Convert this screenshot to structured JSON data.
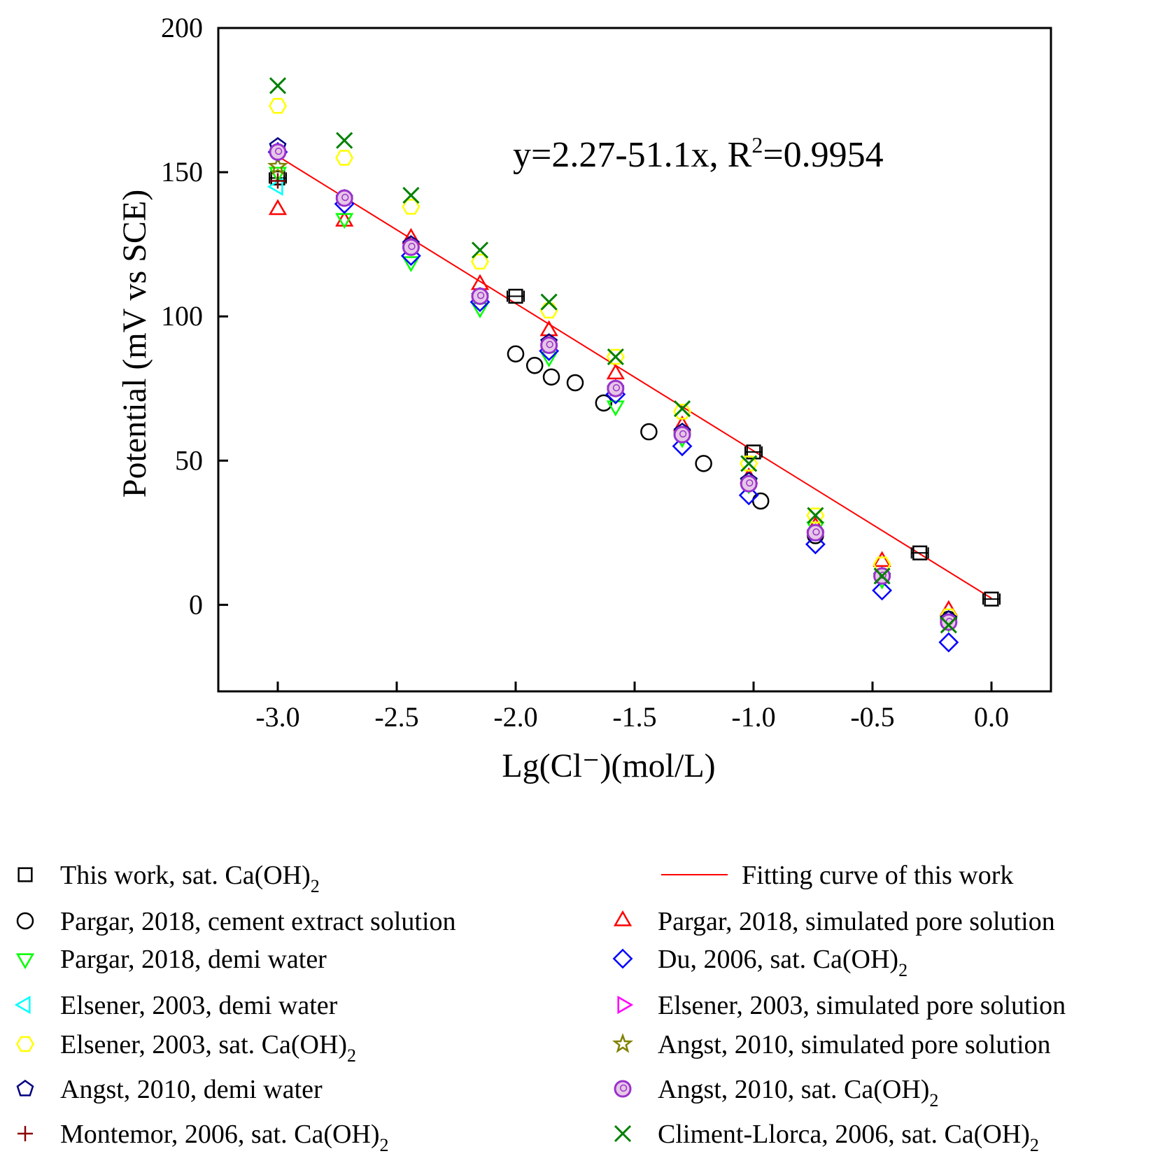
{
  "chart_data": {
    "type": "scatter",
    "xlabel": "Lg(Cl⁻)(mol/L)",
    "ylabel": "Potential (mV vs SCE)",
    "xlim": [
      -3.25,
      0.25
    ],
    "ylim": [
      -30,
      200
    ],
    "xticks": [
      "-3.0",
      "-2.5",
      "-2.0",
      "-1.5",
      "-1.0",
      "-0.5",
      "0.0"
    ],
    "xtick_values": [
      -3.0,
      -2.5,
      -2.0,
      -1.5,
      -1.0,
      -0.5,
      0.0
    ],
    "yticks": [
      "0",
      "50",
      "100",
      "150",
      "200"
    ],
    "ytick_values": [
      0,
      50,
      100,
      150,
      200
    ],
    "grid": false,
    "legend_position": "bottom",
    "annotation": {
      "text": "y=2.27-51.1x, R",
      "sup": "2",
      "text_after": "=0.9954"
    },
    "fit": {
      "name": "Fitting curve of this work",
      "intercept": 2.27,
      "slope": -51.1,
      "x_range": [
        -3.0,
        0.0
      ],
      "color": "#ff0000"
    },
    "series": [
      {
        "name": "This work, sat. Ca(OH)",
        "sub": "2",
        "marker": "square",
        "color": "#000000",
        "x": [
          -3.0,
          -2.0,
          -1.0,
          -0.301,
          0.0
        ],
        "y": [
          148,
          107,
          53,
          18,
          2
        ]
      },
      {
        "name": "Pargar, 2018, cement extract solution",
        "marker": "circle",
        "color": "#000000",
        "x": [
          -2.0,
          -1.92,
          -1.85,
          -1.75,
          -1.63,
          -1.44,
          -1.21,
          -0.97,
          -0.74,
          -0.46,
          -0.18
        ],
        "y": [
          87,
          83,
          79,
          77,
          70,
          60,
          49,
          36,
          24,
          10,
          -5
        ]
      },
      {
        "name": "Pargar, 2018, simulated pore solution",
        "marker": "triangle-up",
        "color": "#ff0000",
        "x": [
          -3.0,
          -2.72,
          -2.44,
          -2.15,
          -1.86,
          -1.58,
          -1.3,
          -1.02,
          -0.74,
          -0.46,
          -0.18
        ],
        "y": [
          137,
          133,
          127,
          111,
          95,
          80,
          62,
          44,
          27,
          15,
          -2
        ]
      },
      {
        "name": "Pargar, 2018, demi water",
        "marker": "triangle-down",
        "color": "#00ff00",
        "x": [
          -3.0,
          -2.72,
          -2.44,
          -2.15,
          -1.86,
          -1.58,
          -1.3,
          -1.02,
          -0.74,
          -0.46,
          -0.18
        ],
        "y": [
          150,
          134,
          119,
          103,
          86,
          69,
          58,
          42,
          27,
          9,
          -6
        ]
      },
      {
        "name": "Du, 2006, sat. Ca(OH)",
        "sub": "2",
        "marker": "diamond",
        "color": "#0000ff",
        "x": [
          -3.0,
          -2.72,
          -2.44,
          -2.15,
          -1.86,
          -1.58,
          -1.3,
          -1.02,
          -0.74,
          -0.46,
          -0.18
        ],
        "y": [
          157,
          139,
          121,
          105,
          88,
          73,
          55,
          38,
          21,
          5,
          -13
        ]
      },
      {
        "name": "Elsener, 2003, demi water",
        "marker": "triangle-left",
        "color": "#00ffff",
        "x": [
          -3.0
        ],
        "y": [
          145
        ]
      },
      {
        "name": "Elsener, 2003, simulated pore solution",
        "marker": "triangle-right",
        "color": "#ff00ff",
        "x": [],
        "y": []
      },
      {
        "name": "Elsener, 2003, sat. Ca(OH)",
        "sub": "2",
        "marker": "hexagon",
        "color": "#ffff00",
        "x": [
          -3.0,
          -2.72,
          -2.44,
          -2.15,
          -1.86,
          -1.58,
          -1.3,
          -1.02,
          -0.74,
          -0.46,
          -0.18
        ],
        "y": [
          173,
          155,
          138,
          119,
          102,
          86,
          67,
          49,
          31,
          14,
          -4
        ]
      },
      {
        "name": "Angst, 2010, simulated pore solution",
        "marker": "star",
        "color": "#808000",
        "x": [
          -3.0
        ],
        "y": [
          152
        ]
      },
      {
        "name": "Angst, 2010, demi water",
        "marker": "pentagon",
        "color": "#000080",
        "x": [
          -3.0,
          -2.72,
          -2.44,
          -2.15,
          -1.86,
          -1.58,
          -1.3,
          -1.02,
          -0.74,
          -0.46,
          -0.18
        ],
        "y": [
          159,
          141,
          125,
          107,
          91,
          75,
          60,
          43,
          25,
          10,
          -5
        ]
      },
      {
        "name": "Angst, 2010, sat. Ca(OH)",
        "sub": "2",
        "marker": "ring",
        "color": "#9932cc",
        "x": [
          -3.0,
          -2.72,
          -2.44,
          -2.15,
          -1.86,
          -1.58,
          -1.3,
          -1.02,
          -0.74,
          -0.46,
          -0.18
        ],
        "y": [
          157,
          141,
          124,
          107,
          90,
          75,
          59,
          42,
          25,
          10,
          -6
        ]
      },
      {
        "name": "Montemor, 2006, sat. Ca(OH)",
        "sub": "2",
        "marker": "plus",
        "color": "#8b0000",
        "x": [
          -3.0
        ],
        "y": [
          147
        ]
      },
      {
        "name": "Climent-Llorca, 2006, sat. Ca(OH)",
        "sub": "2",
        "marker": "cross",
        "color": "#008000",
        "x": [
          -3.0,
          -2.72,
          -2.44,
          -2.15,
          -1.86,
          -1.58,
          -1.3,
          -1.02,
          -0.74,
          -0.46,
          -0.18
        ],
        "y": [
          180,
          161,
          142,
          123,
          105,
          86,
          68,
          49,
          31,
          10,
          -7
        ]
      }
    ]
  }
}
